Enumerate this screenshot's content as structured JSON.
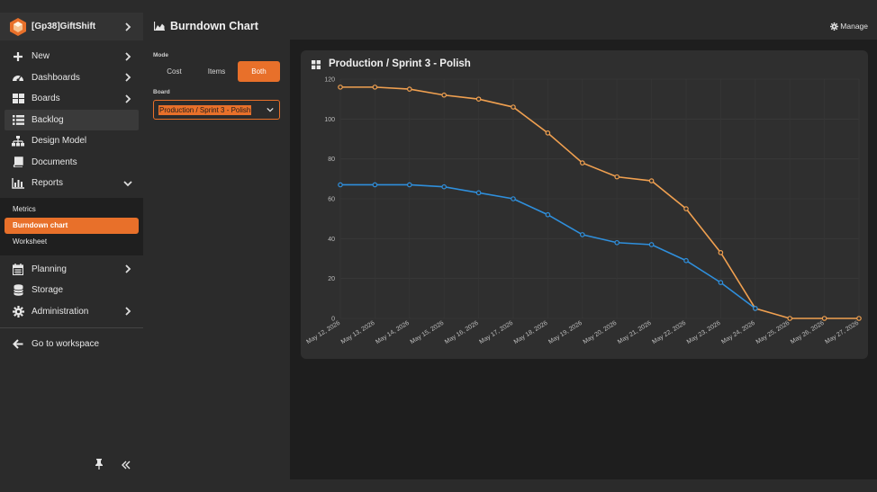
{
  "app": {
    "workspace_name": "[Gp38]GiftShift"
  },
  "sidebar": {
    "items": [
      {
        "label": "New",
        "icon": "plus-icon",
        "chevron": true
      },
      {
        "label": "Dashboards",
        "icon": "dashboard-icon",
        "chevron": true
      },
      {
        "label": "Boards",
        "icon": "boards-icon",
        "chevron": true
      },
      {
        "label": "Backlog",
        "icon": "list-icon",
        "chevron": false
      },
      {
        "label": "Design Model",
        "icon": "sitemap-icon",
        "chevron": false
      },
      {
        "label": "Documents",
        "icon": "book-icon",
        "chevron": false
      },
      {
        "label": "Reports",
        "icon": "bar-chart-icon",
        "chevron": "down"
      }
    ],
    "report_subitems": [
      {
        "label": "Metrics"
      },
      {
        "label": "Burndown chart"
      },
      {
        "label": "Worksheet"
      }
    ],
    "items_bottom": [
      {
        "label": "Planning",
        "icon": "calendar-icon",
        "chevron": true
      },
      {
        "label": "Storage",
        "icon": "database-icon",
        "chevron": false
      },
      {
        "label": "Administration",
        "icon": "gear-icon",
        "chevron": true
      }
    ],
    "go_to_workspace": "Go to workspace"
  },
  "header": {
    "title": "Burndown Chart",
    "manage_label": "Manage"
  },
  "filters": {
    "mode_label": "Mode",
    "mode_options": [
      "Cost",
      "Items",
      "Both"
    ],
    "mode_selected": "Both",
    "board_label": "Board",
    "board_value": "Production / Sprint 3 - Polish"
  },
  "colors": {
    "accent": "#e8702a",
    "series_blue": "#2f8fdc",
    "series_orange": "#f0a050"
  },
  "chart_data": {
    "type": "line",
    "title": "Production / Sprint 3 - Polish",
    "x": [
      "May 12, 2026",
      "May 13, 2026",
      "May 14, 2026",
      "May 15, 2026",
      "May 16, 2026",
      "May 17, 2026",
      "May 18, 2026",
      "May 19, 2026",
      "May 20, 2026",
      "May 21, 2026",
      "May 22, 2026",
      "May 23, 2026",
      "May 24, 2026",
      "May 25, 2026",
      "May 26, 2026",
      "May 27, 2026"
    ],
    "series": [
      {
        "color": "#f0a050",
        "values": [
          116,
          116,
          115,
          112,
          110,
          106,
          93,
          78,
          71,
          69,
          55,
          33,
          5,
          0,
          0,
          0
        ]
      },
      {
        "color": "#2f8fdc",
        "values": [
          67,
          67,
          67,
          66,
          63,
          60,
          52,
          42,
          38,
          37,
          29,
          18,
          5,
          null,
          null,
          null
        ]
      }
    ],
    "ylim": [
      0,
      120
    ],
    "yticks": [
      0,
      20,
      40,
      60,
      80,
      100,
      120
    ],
    "grid": true
  }
}
